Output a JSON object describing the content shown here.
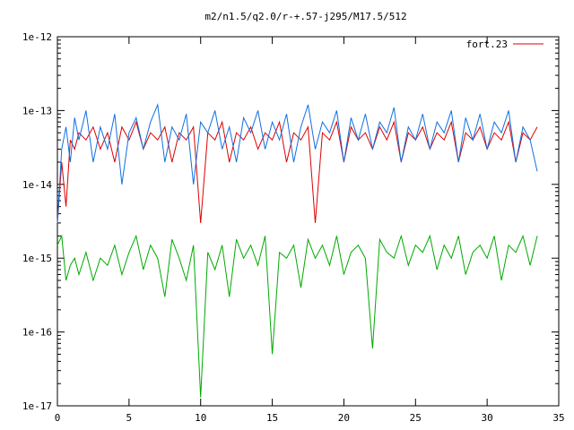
{
  "chart_data": {
    "type": "line",
    "title": "m2/n1.5/q2.0/r-+.57-j295/M17.5/512",
    "xlabel": "",
    "ylabel": "",
    "xlim": [
      0,
      35
    ],
    "ylim": [
      1e-17,
      1e-12
    ],
    "yscale": "log",
    "grid": false,
    "legend_placement": "top-right",
    "x_ticks": [
      0,
      5,
      10,
      15,
      20,
      25,
      30,
      35
    ],
    "x_tick_labels": [
      "0",
      "5",
      "10",
      "15",
      "20",
      "25",
      "30",
      "35"
    ],
    "y_ticks": [
      1e-17,
      1e-16,
      1e-15,
      1e-14,
      1e-13,
      1e-12
    ],
    "y_tick_labels": [
      "1e-17",
      "1e-16",
      "1e-15",
      "1e-14",
      "1e-13",
      "1e-12"
    ],
    "colors": {
      "red": "#dd0000",
      "blue": "#1070e0",
      "green": "#00aa00",
      "axis": "#000000"
    },
    "series": [
      {
        "name": "fort.23",
        "color": "#dd0000",
        "x": [
          0.0,
          0.3,
          0.6,
          0.9,
          1.2,
          1.5,
          2.0,
          2.5,
          3.0,
          3.5,
          4.0,
          4.5,
          5.0,
          5.5,
          6.0,
          6.5,
          7.0,
          7.5,
          8.0,
          8.5,
          9.0,
          9.5,
          10.0,
          10.5,
          11.0,
          11.5,
          12.0,
          12.5,
          13.0,
          13.5,
          14.0,
          14.5,
          15.0,
          15.5,
          16.0,
          16.5,
          17.0,
          17.5,
          18.0,
          18.5,
          19.0,
          19.5,
          20.0,
          20.5,
          21.0,
          21.5,
          22.0,
          22.5,
          23.0,
          23.5,
          24.0,
          24.5,
          25.0,
          25.5,
          26.0,
          26.5,
          27.0,
          27.5,
          28.0,
          28.5,
          29.0,
          29.5,
          30.0,
          30.5,
          31.0,
          31.5,
          32.0,
          32.5,
          33.0,
          33.5
        ],
        "y": [
          3e-15,
          2e-14,
          5e-15,
          4e-14,
          3e-14,
          5e-14,
          4e-14,
          6e-14,
          3e-14,
          5e-14,
          2e-14,
          6e-14,
          4e-14,
          7e-14,
          3e-14,
          5e-14,
          4e-14,
          6e-14,
          2e-14,
          5e-14,
          4e-14,
          6e-14,
          3e-15,
          5e-14,
          4e-14,
          7e-14,
          2e-14,
          5e-14,
          4e-14,
          6e-14,
          3e-14,
          5e-14,
          4e-14,
          7e-14,
          2e-14,
          5e-14,
          4e-14,
          6e-14,
          3e-15,
          5e-14,
          4e-14,
          7e-14,
          2e-14,
          6e-14,
          4e-14,
          5e-14,
          3e-14,
          6e-14,
          4e-14,
          7e-14,
          2e-14,
          5e-14,
          4e-14,
          6e-14,
          3e-14,
          5e-14,
          4e-14,
          7e-14,
          2e-14,
          5e-14,
          4e-14,
          6e-14,
          3e-14,
          5e-14,
          4e-14,
          7e-14,
          2e-14,
          5e-14,
          4e-14,
          6e-14
        ]
      },
      {
        "color": "#1070e0",
        "x": [
          0.0,
          0.3,
          0.6,
          0.9,
          1.2,
          1.5,
          2.0,
          2.5,
          3.0,
          3.5,
          4.0,
          4.5,
          5.0,
          5.5,
          6.0,
          6.5,
          7.0,
          7.5,
          8.0,
          8.5,
          9.0,
          9.5,
          10.0,
          10.5,
          11.0,
          11.5,
          12.0,
          12.5,
          13.0,
          13.5,
          14.0,
          14.5,
          15.0,
          15.5,
          16.0,
          16.5,
          17.0,
          17.5,
          18.0,
          18.5,
          19.0,
          19.5,
          20.0,
          20.5,
          21.0,
          21.5,
          22.0,
          22.5,
          23.0,
          23.5,
          24.0,
          24.5,
          25.0,
          25.5,
          26.0,
          26.5,
          27.0,
          27.5,
          28.0,
          28.5,
          29.0,
          29.5,
          30.0,
          30.5,
          31.0,
          31.5,
          32.0,
          32.5,
          33.0,
          33.5
        ],
        "y": [
          3e-15,
          3e-14,
          6e-14,
          2e-14,
          8e-14,
          4e-14,
          1e-13,
          2e-14,
          6e-14,
          3e-14,
          9e-14,
          1e-14,
          5e-14,
          8e-14,
          3e-14,
          7e-14,
          1.2e-13,
          2e-14,
          6e-14,
          4e-14,
          9e-14,
          1e-14,
          7e-14,
          5e-14,
          1e-13,
          3e-14,
          6e-14,
          2e-14,
          8e-14,
          5e-14,
          1e-13,
          3e-14,
          7e-14,
          4e-14,
          9e-14,
          2e-14,
          6e-14,
          1.2e-13,
          3e-14,
          7e-14,
          5e-14,
          1e-13,
          2e-14,
          8e-14,
          4e-14,
          9e-14,
          3e-14,
          7e-14,
          5e-14,
          1.1e-13,
          2e-14,
          6e-14,
          4e-14,
          9e-14,
          3e-14,
          7e-14,
          5e-14,
          1e-13,
          2e-14,
          8e-14,
          4e-14,
          9e-14,
          3e-14,
          7e-14,
          5e-14,
          1e-13,
          2e-14,
          6e-14,
          4e-14,
          1.5e-14
        ]
      },
      {
        "color": "#00aa00",
        "x": [
          0.0,
          0.3,
          0.6,
          0.9,
          1.2,
          1.5,
          2.0,
          2.5,
          3.0,
          3.5,
          4.0,
          4.5,
          5.0,
          5.5,
          6.0,
          6.5,
          7.0,
          7.5,
          8.0,
          8.5,
          9.0,
          9.5,
          10.0,
          10.5,
          11.0,
          11.5,
          12.0,
          12.5,
          13.0,
          13.5,
          14.0,
          14.5,
          15.0,
          15.5,
          16.0,
          16.5,
          17.0,
          17.5,
          18.0,
          18.5,
          19.0,
          19.5,
          20.0,
          20.5,
          21.0,
          21.5,
          22.0,
          22.5,
          23.0,
          23.5,
          24.0,
          24.5,
          25.0,
          25.5,
          26.0,
          26.5,
          27.0,
          27.5,
          28.0,
          28.5,
          29.0,
          29.5,
          30.0,
          30.5,
          31.0,
          31.5,
          32.0,
          32.5,
          33.0,
          33.5
        ],
        "y": [
          1.5e-15,
          2e-15,
          5e-16,
          8e-16,
          1e-15,
          6e-16,
          1.2e-15,
          5e-16,
          1e-15,
          8e-16,
          1.5e-15,
          6e-16,
          1.2e-15,
          2e-15,
          7e-16,
          1.5e-15,
          1e-15,
          3e-16,
          1.8e-15,
          1e-15,
          5e-16,
          1.5e-15,
          1.3e-17,
          1.2e-15,
          7e-16,
          1.5e-15,
          3e-16,
          1.8e-15,
          1e-15,
          1.5e-15,
          8e-16,
          2e-15,
          5e-17,
          1.2e-15,
          1e-15,
          1.5e-15,
          4e-16,
          1.8e-15,
          1e-15,
          1.5e-15,
          8e-16,
          2e-15,
          6e-16,
          1.2e-15,
          1.5e-15,
          1e-15,
          6e-17,
          1.8e-15,
          1.2e-15,
          1e-15,
          2e-15,
          8e-16,
          1.5e-15,
          1.2e-15,
          2e-15,
          7e-16,
          1.5e-15,
          1e-15,
          2e-15,
          6e-16,
          1.2e-15,
          1.5e-15,
          1e-15,
          2e-15,
          5e-16,
          1.5e-15,
          1.2e-15,
          2e-15,
          8e-16,
          2e-15
        ]
      }
    ]
  }
}
